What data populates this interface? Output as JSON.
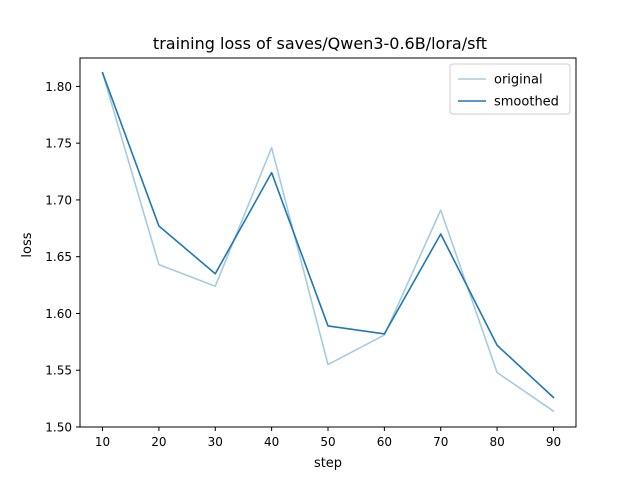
{
  "chart_data": {
    "type": "line",
    "title": "training loss of saves/Qwen3-0.6B/lora/sft",
    "xlabel": "step",
    "ylabel": "loss",
    "x": [
      10,
      20,
      30,
      40,
      50,
      60,
      70,
      80,
      90
    ],
    "xticks": [
      10,
      20,
      30,
      40,
      50,
      60,
      70,
      80,
      90
    ],
    "yticks": [
      1.5,
      1.55,
      1.6,
      1.65,
      1.7,
      1.75,
      1.8
    ],
    "xlim": [
      6,
      94
    ],
    "ylim": [
      1.5,
      1.825
    ],
    "grid": false,
    "legend_position": "top-right",
    "series": [
      {
        "name": "original",
        "color": "#a6cbe0",
        "values": [
          1.812,
          1.643,
          1.624,
          1.746,
          1.555,
          1.581,
          1.691,
          1.548,
          1.514
        ]
      },
      {
        "name": "smoothed",
        "color": "#1f77b4",
        "values": [
          1.812,
          1.677,
          1.635,
          1.724,
          1.589,
          1.582,
          1.67,
          1.572,
          1.526
        ]
      }
    ]
  }
}
